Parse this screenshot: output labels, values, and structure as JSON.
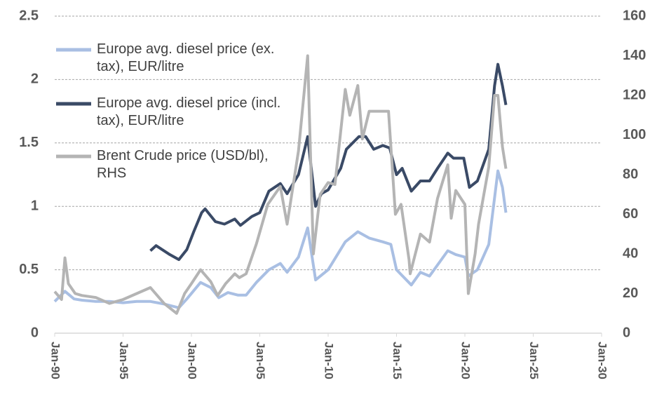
{
  "chart_data": {
    "type": "line",
    "xlim": [
      "1990-01",
      "2030-01"
    ],
    "xticks": [
      {
        "value": "1990-01",
        "label": "Jan-90"
      },
      {
        "value": "1995-01",
        "label": "Jan-95"
      },
      {
        "value": "2000-01",
        "label": "Jan-00"
      },
      {
        "value": "2005-01",
        "label": "Jan-05"
      },
      {
        "value": "2010-01",
        "label": "Jan-10"
      },
      {
        "value": "2015-01",
        "label": "Jan-15"
      },
      {
        "value": "2020-01",
        "label": "Jan-20"
      },
      {
        "value": "2025-01",
        "label": "Jan-25"
      },
      {
        "value": "2030-01",
        "label": "Jan-30"
      }
    ],
    "ylim": [
      0,
      2.5
    ],
    "yticks": [
      0,
      0.5,
      1,
      1.5,
      2,
      2.5
    ],
    "y2lim": [
      0,
      160
    ],
    "y2ticks": [
      0,
      20,
      40,
      60,
      80,
      100,
      120,
      140,
      160
    ],
    "grid": true,
    "legend": "top-left",
    "series": [
      {
        "name": "Europe avg. diesel price (ex. tax), EUR/litre",
        "color": "#a9bfe3",
        "x": [
          "1990-01",
          "1990-10",
          "1991-06",
          "1992-01",
          "1993-01",
          "1994-01",
          "1995-01",
          "1996-01",
          "1997-01",
          "1998-01",
          "1999-02",
          "1999-09",
          "2000-09",
          "2001-06",
          "2002-01",
          "2002-09",
          "2003-06",
          "2004-01",
          "2004-10",
          "2005-09",
          "2006-07",
          "2007-01",
          "2007-11",
          "2008-07",
          "2009-02",
          "2010-01",
          "2011-04",
          "2012-03",
          "2013-01",
          "2014-01",
          "2014-08",
          "2015-01",
          "2016-02",
          "2016-10",
          "2017-06",
          "2018-10",
          "2019-05",
          "2020-01",
          "2020-04",
          "2020-12",
          "2021-10",
          "2022-06",
          "2022-10",
          "2023-01"
        ],
        "values": [
          0.25,
          0.33,
          0.27,
          0.26,
          0.25,
          0.25,
          0.24,
          0.25,
          0.25,
          0.23,
          0.2,
          0.27,
          0.4,
          0.36,
          0.28,
          0.32,
          0.3,
          0.3,
          0.4,
          0.5,
          0.55,
          0.48,
          0.6,
          0.83,
          0.42,
          0.5,
          0.72,
          0.8,
          0.75,
          0.72,
          0.7,
          0.5,
          0.38,
          0.48,
          0.45,
          0.65,
          0.62,
          0.6,
          0.45,
          0.5,
          0.7,
          1.28,
          1.15,
          0.95
        ]
      },
      {
        "name": "Europe avg. diesel price (incl. tax), EUR/litre",
        "color": "#3a4a66",
        "x": [
          "1997-01",
          "1997-06",
          "1998-06",
          "1999-02",
          "1999-09",
          "2000-03",
          "2000-10",
          "2001-01",
          "2001-10",
          "2002-06",
          "2003-03",
          "2003-08",
          "2004-06",
          "2005-01",
          "2005-09",
          "2006-07",
          "2007-01",
          "2007-11",
          "2008-07",
          "2009-02",
          "2009-07",
          "2010-01",
          "2010-12",
          "2011-05",
          "2012-04",
          "2012-10",
          "2013-05",
          "2014-01",
          "2014-07",
          "2015-01",
          "2015-06",
          "2016-02",
          "2016-10",
          "2017-06",
          "2018-01",
          "2018-10",
          "2019-03",
          "2019-12",
          "2020-05",
          "2020-12",
          "2021-10",
          "2022-03",
          "2022-06",
          "2022-10",
          "2023-01"
        ],
        "values": [
          0.65,
          0.69,
          0.62,
          0.58,
          0.66,
          0.8,
          0.95,
          0.98,
          0.88,
          0.86,
          0.9,
          0.85,
          0.92,
          0.95,
          1.12,
          1.18,
          1.1,
          1.25,
          1.55,
          1.0,
          1.1,
          1.13,
          1.3,
          1.45,
          1.55,
          1.55,
          1.45,
          1.48,
          1.46,
          1.25,
          1.3,
          1.12,
          1.2,
          1.2,
          1.3,
          1.42,
          1.38,
          1.38,
          1.15,
          1.2,
          1.45,
          1.95,
          2.12,
          1.95,
          1.8
        ]
      },
      {
        "name": "Brent Crude price (USD/bl), RHS",
        "color": "#b4b4b4",
        "axis": "y2",
        "x": [
          "1990-01",
          "1990-07",
          "1990-10",
          "1991-01",
          "1991-07",
          "1992-01",
          "1993-01",
          "1994-01",
          "1995-01",
          "1996-01",
          "1997-01",
          "1998-01",
          "1998-12",
          "1999-07",
          "2000-01",
          "2000-09",
          "2001-06",
          "2001-12",
          "2002-07",
          "2003-03",
          "2003-07",
          "2004-01",
          "2004-10",
          "2005-08",
          "2006-07",
          "2007-01",
          "2007-11",
          "2008-07",
          "2008-12",
          "2009-06",
          "2010-01",
          "2010-07",
          "2011-04",
          "2011-08",
          "2012-03",
          "2012-07",
          "2013-01",
          "2013-09",
          "2014-06",
          "2014-12",
          "2015-05",
          "2015-12",
          "2016-01",
          "2016-10",
          "2017-06",
          "2018-01",
          "2018-10",
          "2019-01",
          "2019-05",
          "2020-01",
          "2020-04",
          "2020-10",
          "2021-01",
          "2021-10",
          "2022-03",
          "2022-06",
          "2022-10",
          "2023-01"
        ],
        "values": [
          21,
          17,
          38,
          25,
          20,
          19,
          18,
          15,
          17,
          20,
          23,
          15,
          10,
          20,
          25,
          32,
          26,
          19,
          25,
          30,
          28,
          30,
          45,
          65,
          74,
          55,
          92,
          140,
          40,
          70,
          76,
          75,
          123,
          110,
          125,
          98,
          112,
          112,
          112,
          60,
          65,
          37,
          30,
          50,
          46,
          68,
          85,
          58,
          72,
          65,
          20,
          40,
          55,
          84,
          120,
          120,
          94,
          83
        ]
      }
    ]
  }
}
